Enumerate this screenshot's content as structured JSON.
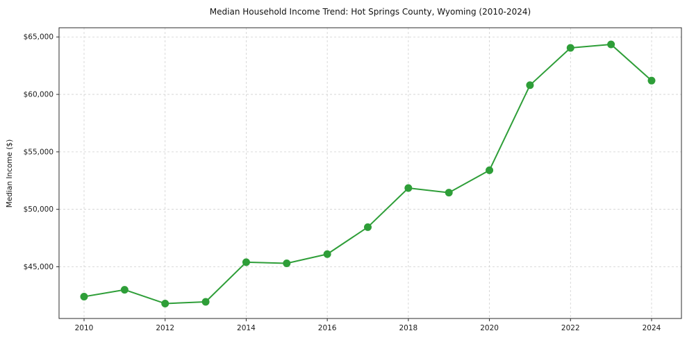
{
  "figure": {
    "background": "#ffffff"
  },
  "chart_data": {
    "type": "line",
    "title": "Median Household Income Trend: Hot Springs County, Wyoming (2010-2024)",
    "xlabel": "",
    "ylabel": "Median Income ($)",
    "x": [
      2010,
      2011,
      2012,
      2013,
      2014,
      2015,
      2016,
      2017,
      2018,
      2019,
      2020,
      2021,
      2022,
      2023,
      2024
    ],
    "series": [
      {
        "name": "Median Household Income",
        "color": "#2e9e38",
        "marker": "circle",
        "values": [
          42400,
          43000,
          41800,
          41950,
          45400,
          45300,
          46100,
          48450,
          51850,
          51450,
          53400,
          60800,
          64050,
          64350,
          61200
        ]
      }
    ],
    "ylim": [
      40500,
      65800
    ],
    "yticks": [
      45000,
      50000,
      55000,
      60000,
      65000
    ],
    "ytick_labels": [
      "$45,000",
      "$50,000",
      "$55,000",
      "$60,000",
      "$65,000"
    ],
    "xticks": [
      2010,
      2012,
      2014,
      2016,
      2018,
      2020,
      2022,
      2024
    ],
    "xtick_labels": [
      "2010",
      "2012",
      "2014",
      "2016",
      "2018",
      "2020",
      "2022",
      "2024"
    ],
    "grid": true,
    "grid_style": "dashed",
    "grid_color": "#cfcfcf",
    "spine_color": "#2b2b2b",
    "legend_position": "none"
  }
}
